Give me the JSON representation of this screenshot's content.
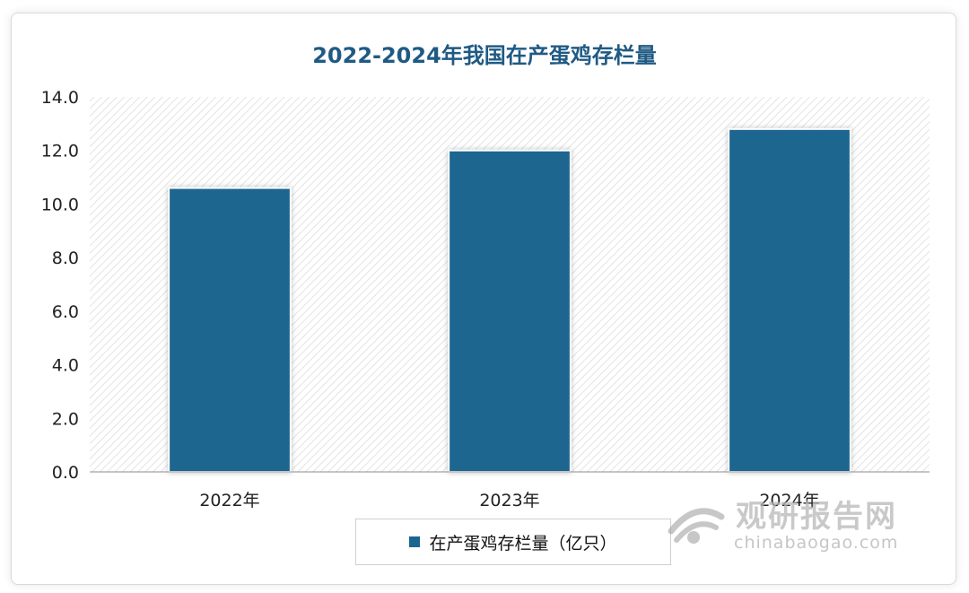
{
  "chart_data": {
    "type": "bar",
    "title": "2022-2024年我国在产蛋鸡存栏量",
    "categories": [
      "2022年",
      "2023年",
      "2024年"
    ],
    "series": [
      {
        "name": "在产蛋鸡存栏量（亿只）",
        "values": [
          10.6,
          12.0,
          12.8
        ]
      }
    ],
    "ylim": [
      0,
      14
    ],
    "yticks": [
      "0.0",
      "2.0",
      "4.0",
      "6.0",
      "8.0",
      "10.0",
      "12.0",
      "14.0"
    ],
    "grid": false,
    "legend_position": "bottom",
    "bar_color": "#1b6690"
  },
  "watermark": {
    "brand": "观研报告网",
    "url": "chinabaogao.com"
  }
}
